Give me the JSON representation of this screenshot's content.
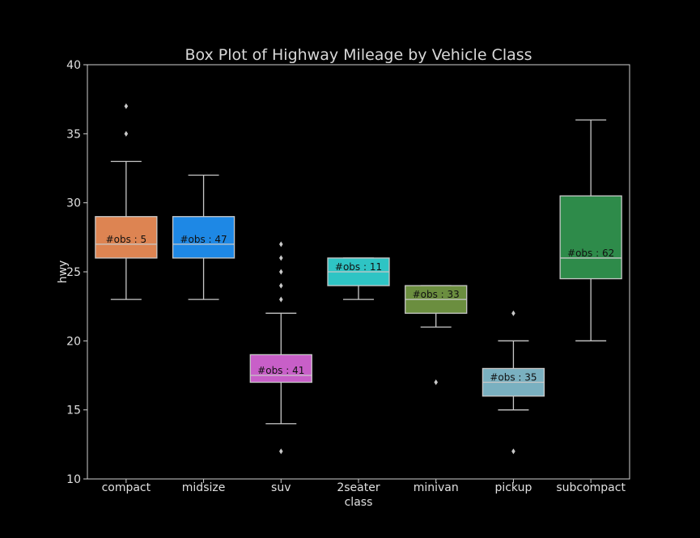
{
  "chart_data": {
    "type": "box",
    "title": "Box Plot of Highway Mileage by Vehicle Class",
    "xlabel": "class",
    "ylabel": "hwy",
    "ylim": [
      10,
      40
    ],
    "yticks": [
      10,
      15,
      20,
      25,
      30,
      35,
      40
    ],
    "grid": false,
    "obs_label_prefix": "#obs : ",
    "categories": [
      "compact",
      "midsize",
      "suv",
      "2seater",
      "minivan",
      "pickup",
      "subcompact"
    ],
    "boxes": [
      {
        "category": "compact",
        "color": "#dd8452",
        "whisker_low": 23,
        "q1": 26,
        "median": 27,
        "q3": 29,
        "whisker_high": 33,
        "outliers": [
          35,
          37
        ],
        "obs": 5
      },
      {
        "category": "midsize",
        "color": "#1e88e5",
        "whisker_low": 23,
        "q1": 26,
        "median": 27,
        "q3": 29,
        "whisker_high": 32,
        "outliers": [],
        "obs": 47
      },
      {
        "category": "suv",
        "color": "#c85fc8",
        "whisker_low": 14,
        "q1": 17,
        "median": 17.5,
        "q3": 19,
        "whisker_high": 22,
        "outliers": [
          12,
          23,
          24,
          25,
          26,
          27
        ],
        "obs": 41
      },
      {
        "category": "2seater",
        "color": "#2ec4c4",
        "whisker_low": 23,
        "q1": 24,
        "median": 25,
        "q3": 26,
        "whisker_high": 26,
        "outliers": [],
        "obs": 11
      },
      {
        "category": "minivan",
        "color": "#6b8e3f",
        "whisker_low": 21,
        "q1": 22,
        "median": 23,
        "q3": 24,
        "whisker_high": 24,
        "outliers": [
          17
        ],
        "obs": 33
      },
      {
        "category": "pickup",
        "color": "#7ab0c0",
        "whisker_low": 15,
        "q1": 16,
        "median": 17,
        "q3": 18,
        "whisker_high": 20,
        "outliers": [
          12,
          22
        ],
        "obs": 35
      },
      {
        "category": "subcompact",
        "color": "#2e8b4a",
        "whisker_low": 20,
        "q1": 24.5,
        "median": 26,
        "q3": 30.5,
        "whisker_high": 36,
        "outliers": [],
        "obs": 62
      }
    ]
  }
}
